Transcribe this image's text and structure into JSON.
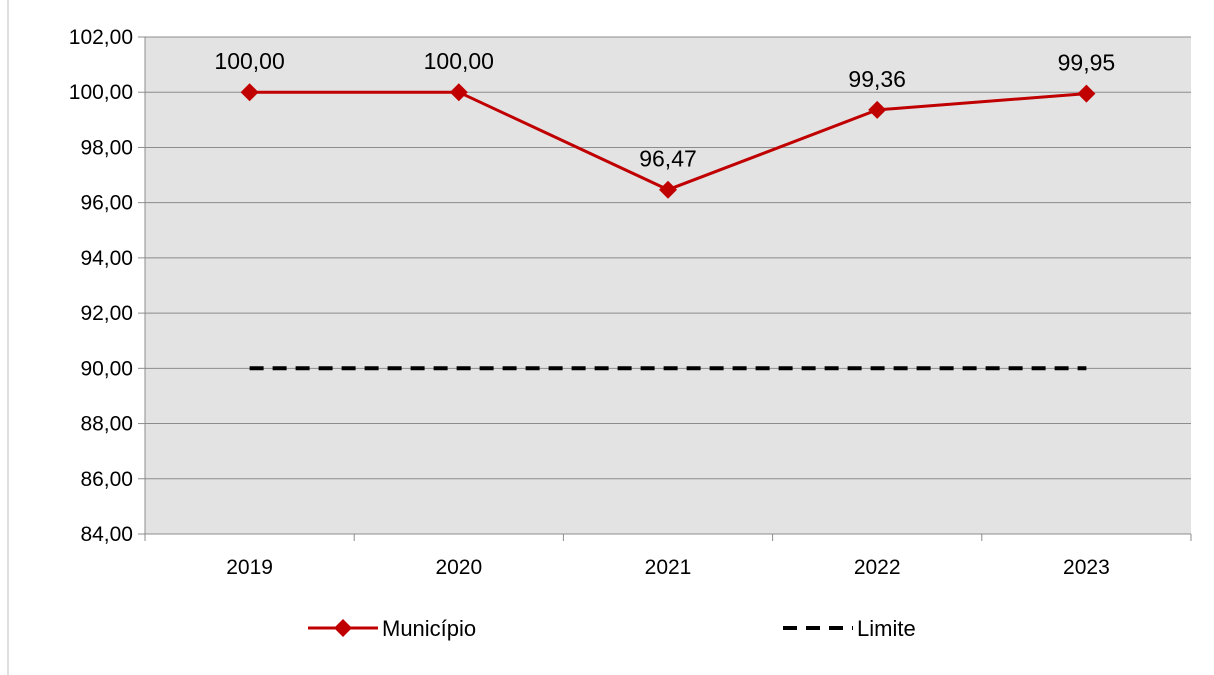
{
  "chart_data": {
    "type": "line",
    "categories": [
      "2019",
      "2020",
      "2021",
      "2022",
      "2023"
    ],
    "series": [
      {
        "name": "Município",
        "values": [
          100.0,
          100.0,
          96.47,
          99.36,
          99.95
        ],
        "data_labels": [
          "100,00",
          "100,00",
          "96,47",
          "99,36",
          "99,95"
        ],
        "color": "#c00000",
        "marker": "diamond",
        "line_style": "solid"
      },
      {
        "name": "Limite",
        "values": [
          90.0,
          90.0,
          90.0,
          90.0,
          90.0
        ],
        "color": "#000000",
        "line_style": "dashed"
      }
    ],
    "ylim": [
      84,
      102
    ],
    "yticks": [
      102,
      100,
      98,
      96,
      94,
      92,
      90,
      88,
      86,
      84
    ],
    "ytick_labels": [
      "102,00",
      "100,00",
      "98,00",
      "96,00",
      "94,00",
      "92,00",
      "90,00",
      "88,00",
      "86,00",
      "84,00"
    ],
    "grid": "horizontal",
    "plot_background": "#e3e3e3",
    "legend_position": "bottom"
  }
}
